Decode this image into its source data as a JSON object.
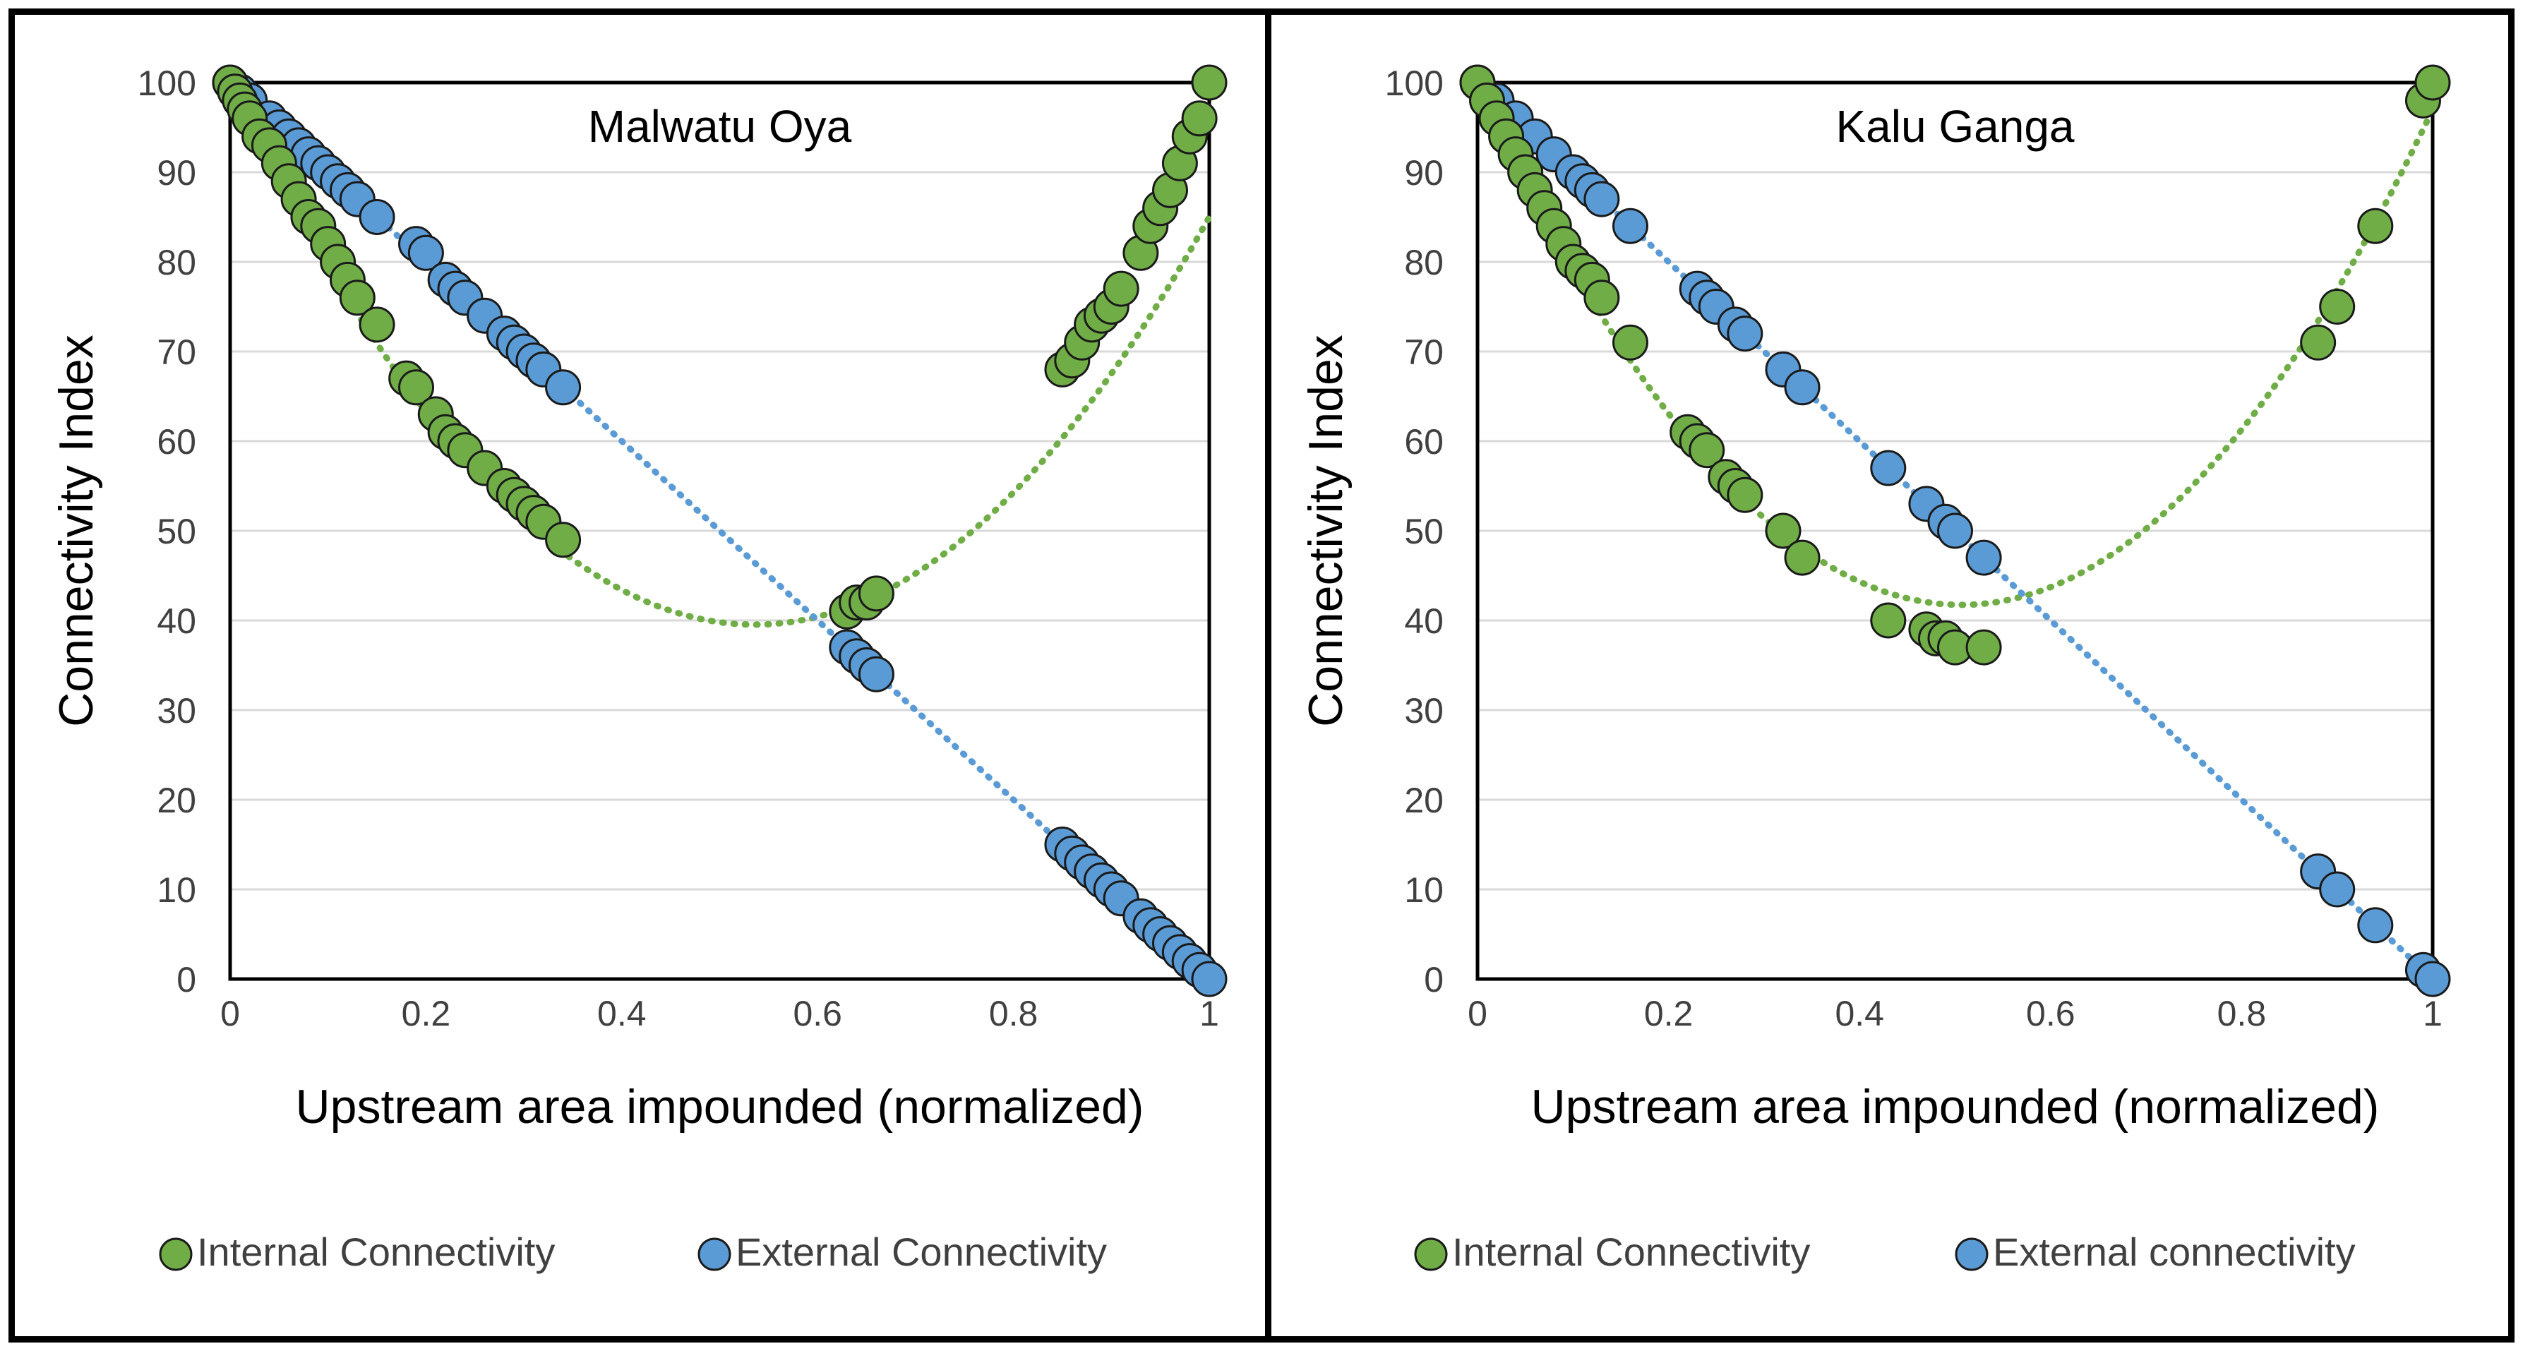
{
  "chart_data": [
    {
      "type": "scatter",
      "title": "Malwatu Oya",
      "xlabel": "Upstream area impounded (normalized)",
      "ylabel": "Connectivity Index",
      "xlim": [
        0,
        1
      ],
      "ylim": [
        0,
        100
      ],
      "x_ticks": [
        "0",
        "0.2",
        "0.4",
        "0.6",
        "0.8",
        "1"
      ],
      "y_ticks": [
        "0",
        "10",
        "20",
        "30",
        "40",
        "50",
        "60",
        "70",
        "80",
        "90",
        "100"
      ],
      "grid": "horizontal",
      "legend_position": "bottom",
      "series": [
        {
          "name": "Internal Connectivity",
          "color": "#70ad47",
          "trendline": "polynomial",
          "trend_coeffs": [
            100,
            -225.8,
            210.8
          ],
          "points": [
            [
              0,
              100
            ],
            [
              0.005,
              99
            ],
            [
              0.01,
              98
            ],
            [
              0.015,
              97
            ],
            [
              0.02,
              96
            ],
            [
              0.03,
              94
            ],
            [
              0.04,
              93
            ],
            [
              0.05,
              91
            ],
            [
              0.06,
              89
            ],
            [
              0.07,
              87
            ],
            [
              0.08,
              85
            ],
            [
              0.09,
              84
            ],
            [
              0.1,
              82
            ],
            [
              0.11,
              80
            ],
            [
              0.12,
              78
            ],
            [
              0.13,
              76
            ],
            [
              0.15,
              73
            ],
            [
              0.18,
              67
            ],
            [
              0.19,
              66
            ],
            [
              0.21,
              63
            ],
            [
              0.22,
              61
            ],
            [
              0.23,
              60
            ],
            [
              0.24,
              59
            ],
            [
              0.26,
              57
            ],
            [
              0.28,
              55
            ],
            [
              0.29,
              54
            ],
            [
              0.3,
              53
            ],
            [
              0.31,
              52
            ],
            [
              0.32,
              51
            ],
            [
              0.34,
              49
            ],
            [
              0.63,
              41
            ],
            [
              0.64,
              42
            ],
            [
              0.65,
              42
            ],
            [
              0.66,
              43
            ],
            [
              0.85,
              68
            ],
            [
              0.86,
              69
            ],
            [
              0.87,
              71
            ],
            [
              0.88,
              73
            ],
            [
              0.89,
              74
            ],
            [
              0.9,
              75
            ],
            [
              0.91,
              77
            ],
            [
              0.93,
              81
            ],
            [
              0.94,
              84
            ],
            [
              0.95,
              86
            ],
            [
              0.96,
              88
            ],
            [
              0.97,
              91
            ],
            [
              0.98,
              94
            ],
            [
              0.99,
              96
            ],
            [
              1,
              100
            ]
          ]
        },
        {
          "name": "External Connectivity",
          "color": "#5b9bd5",
          "trendline": "linear",
          "trend_coeffs": [
            100,
            -100
          ],
          "points": [
            [
              0,
              100
            ],
            [
              0.01,
              99
            ],
            [
              0.02,
              98
            ],
            [
              0.04,
              96
            ],
            [
              0.05,
              95
            ],
            [
              0.06,
              94
            ],
            [
              0.07,
              93
            ],
            [
              0.08,
              92
            ],
            [
              0.09,
              91
            ],
            [
              0.1,
              90
            ],
            [
              0.11,
              89
            ],
            [
              0.12,
              88
            ],
            [
              0.13,
              87
            ],
            [
              0.15,
              85
            ],
            [
              0.19,
              82
            ],
            [
              0.2,
              81
            ],
            [
              0.22,
              78
            ],
            [
              0.23,
              77
            ],
            [
              0.24,
              76
            ],
            [
              0.26,
              74
            ],
            [
              0.28,
              72
            ],
            [
              0.29,
              71
            ],
            [
              0.3,
              70
            ],
            [
              0.31,
              69
            ],
            [
              0.32,
              68
            ],
            [
              0.34,
              66
            ],
            [
              0.63,
              37
            ],
            [
              0.64,
              36
            ],
            [
              0.65,
              35
            ],
            [
              0.66,
              34
            ],
            [
              0.85,
              15
            ],
            [
              0.86,
              14
            ],
            [
              0.87,
              13
            ],
            [
              0.88,
              12
            ],
            [
              0.89,
              11
            ],
            [
              0.9,
              10
            ],
            [
              0.91,
              9
            ],
            [
              0.93,
              7
            ],
            [
              0.94,
              6
            ],
            [
              0.95,
              5
            ],
            [
              0.96,
              4
            ],
            [
              0.97,
              3
            ],
            [
              0.98,
              2
            ],
            [
              0.99,
              1
            ],
            [
              1,
              0
            ]
          ]
        }
      ]
    },
    {
      "type": "scatter",
      "title": "Kalu Ganga",
      "xlabel": "Upstream area impounded (normalized)",
      "ylabel": "Connectivity Index",
      "xlim": [
        0,
        1
      ],
      "ylim": [
        0,
        100
      ],
      "x_ticks": [
        "0",
        "0.2",
        "0.4",
        "0.6",
        "0.8",
        "1"
      ],
      "y_ticks": [
        "0",
        "10",
        "20",
        "30",
        "40",
        "50",
        "60",
        "70",
        "80",
        "90",
        "100"
      ],
      "grid": "horizontal",
      "legend_position": "bottom",
      "series": [
        {
          "name": "Internal Connectivity",
          "color": "#70ad47",
          "trendline": "polynomial",
          "trend_coeffs": [
            100,
            -230,
            227
          ],
          "points": [
            [
              0,
              100
            ],
            [
              0.01,
              98
            ],
            [
              0.02,
              96
            ],
            [
              0.03,
              94
            ],
            [
              0.04,
              92
            ],
            [
              0.05,
              90
            ],
            [
              0.06,
              88
            ],
            [
              0.07,
              86
            ],
            [
              0.08,
              84
            ],
            [
              0.09,
              82
            ],
            [
              0.1,
              80
            ],
            [
              0.11,
              79
            ],
            [
              0.12,
              78
            ],
            [
              0.13,
              76
            ],
            [
              0.16,
              71
            ],
            [
              0.22,
              61
            ],
            [
              0.23,
              60
            ],
            [
              0.24,
              59
            ],
            [
              0.26,
              56
            ],
            [
              0.27,
              55
            ],
            [
              0.28,
              54
            ],
            [
              0.32,
              50
            ],
            [
              0.34,
              47
            ],
            [
              0.43,
              40
            ],
            [
              0.47,
              39
            ],
            [
              0.48,
              38
            ],
            [
              0.49,
              38
            ],
            [
              0.5,
              37
            ],
            [
              0.53,
              37
            ],
            [
              0.88,
              71
            ],
            [
              0.9,
              75
            ],
            [
              0.94,
              84
            ],
            [
              0.99,
              98
            ],
            [
              1,
              100
            ]
          ]
        },
        {
          "name": "External connectivity",
          "color": "#5b9bd5",
          "trendline": "linear",
          "trend_coeffs": [
            100,
            -100
          ],
          "points": [
            [
              0,
              100
            ],
            [
              0.02,
              98
            ],
            [
              0.04,
              96
            ],
            [
              0.06,
              94
            ],
            [
              0.08,
              92
            ],
            [
              0.1,
              90
            ],
            [
              0.11,
              89
            ],
            [
              0.12,
              88
            ],
            [
              0.13,
              87
            ],
            [
              0.16,
              84
            ],
            [
              0.23,
              77
            ],
            [
              0.24,
              76
            ],
            [
              0.25,
              75
            ],
            [
              0.27,
              73
            ],
            [
              0.28,
              72
            ],
            [
              0.32,
              68
            ],
            [
              0.34,
              66
            ],
            [
              0.43,
              57
            ],
            [
              0.47,
              53
            ],
            [
              0.49,
              51
            ],
            [
              0.5,
              50
            ],
            [
              0.53,
              47
            ],
            [
              0.88,
              12
            ],
            [
              0.9,
              10
            ],
            [
              0.94,
              6
            ],
            [
              0.99,
              1
            ],
            [
              1,
              0
            ]
          ]
        }
      ]
    }
  ]
}
